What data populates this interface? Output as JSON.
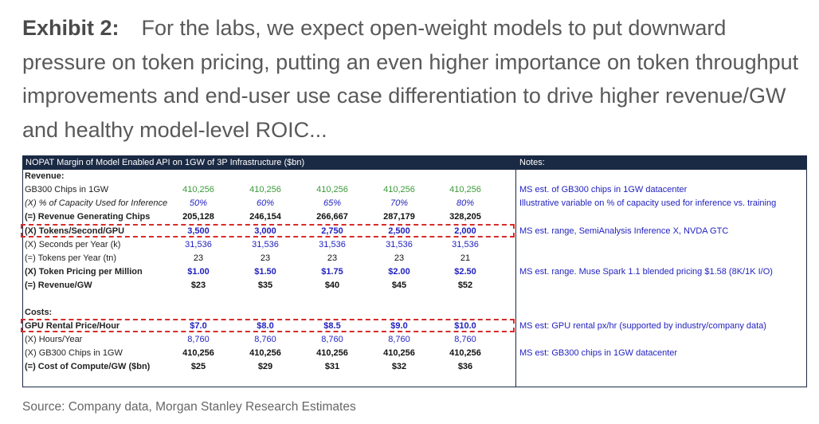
{
  "headline": {
    "exhibit": "Exhibit 2:",
    "text": "For the labs, we expect open-weight models to put downward pressure on token pricing, putting an even higher importance on token throughput improvements and end-user use case differentiation to drive higher revenue/GW and healthy model-level ROIC..."
  },
  "table": {
    "title": "NOPAT Margin of Model Enabled API on 1GW of 3P Infrastructure ($bn)",
    "notes_header": "Notes:",
    "rows": {
      "revenue_section": "Revenue:",
      "chips": {
        "label": "GB300 Chips in 1GW",
        "v": [
          "410,256",
          "410,256",
          "410,256",
          "410,256",
          "410,256"
        ],
        "note": "MS est. of GB300 chips in 1GW datacenter"
      },
      "capacity": {
        "label": "(X) % of Capacity Used for Inference",
        "v": [
          "50%",
          "60%",
          "65%",
          "70%",
          "80%"
        ],
        "note": "Illustrative variable on % of capacity used for inference vs. training"
      },
      "rev_chips": {
        "label": "(=) Revenue Generating Chips",
        "v": [
          "205,128",
          "246,154",
          "266,667",
          "287,179",
          "328,205"
        ]
      },
      "tokens_sec": {
        "label": "(X) Tokens/Second/GPU",
        "v": [
          "3,500",
          "3,000",
          "2,750",
          "2,500",
          "2,000"
        ],
        "note": "MS est. range, SemiAnalysis Inference X, NVDA GTC"
      },
      "seconds": {
        "label": "(X) Seconds per Year (k)",
        "v": [
          "31,536",
          "31,536",
          "31,536",
          "31,536",
          "31,536"
        ]
      },
      "tokens_year": {
        "label": "(=) Tokens per Year (tn)",
        "v": [
          "23",
          "23",
          "23",
          "23",
          "21"
        ]
      },
      "pricing": {
        "label": "(X) Token Pricing per Million",
        "v": [
          "$1.00",
          "$1.50",
          "$1.75",
          "$2.00",
          "$2.50"
        ],
        "note": "MS est. range. Muse Spark 1.1 blended pricing $1.58 (8K/1K I/O)"
      },
      "rev_gw": {
        "label": "(=) Revenue/GW",
        "v": [
          "$23",
          "$35",
          "$40",
          "$45",
          "$52"
        ]
      },
      "costs_section": "Costs:",
      "gpu_rental": {
        "label": "GPU Rental Price/Hour",
        "v": [
          "$7.0",
          "$8.0",
          "$8.5",
          "$9.0",
          "$10.0"
        ],
        "note": "MS est: GPU rental px/hr (supported by industry/company data)"
      },
      "hours": {
        "label": "(X) Hours/Year",
        "v": [
          "8,760",
          "8,760",
          "8,760",
          "8,760",
          "8,760"
        ]
      },
      "chips2": {
        "label": "(X) GB300 Chips in 1GW",
        "v": [
          "410,256",
          "410,256",
          "410,256",
          "410,256",
          "410,256"
        ],
        "note": "MS est: GB300 chips in 1GW datacenter"
      },
      "cost_gw": {
        "label": "(=) Cost of Compute/GW ($bn)",
        "v": [
          "$25",
          "$29",
          "$31",
          "$32",
          "$36"
        ]
      }
    }
  },
  "source": "Source: Company data, Morgan Stanley Research Estimates",
  "colors": {
    "header_bg": "#1b2a44",
    "green": "#3a9a3a",
    "blue": "#1f1fbf",
    "dash_red": "#d62b2b"
  }
}
